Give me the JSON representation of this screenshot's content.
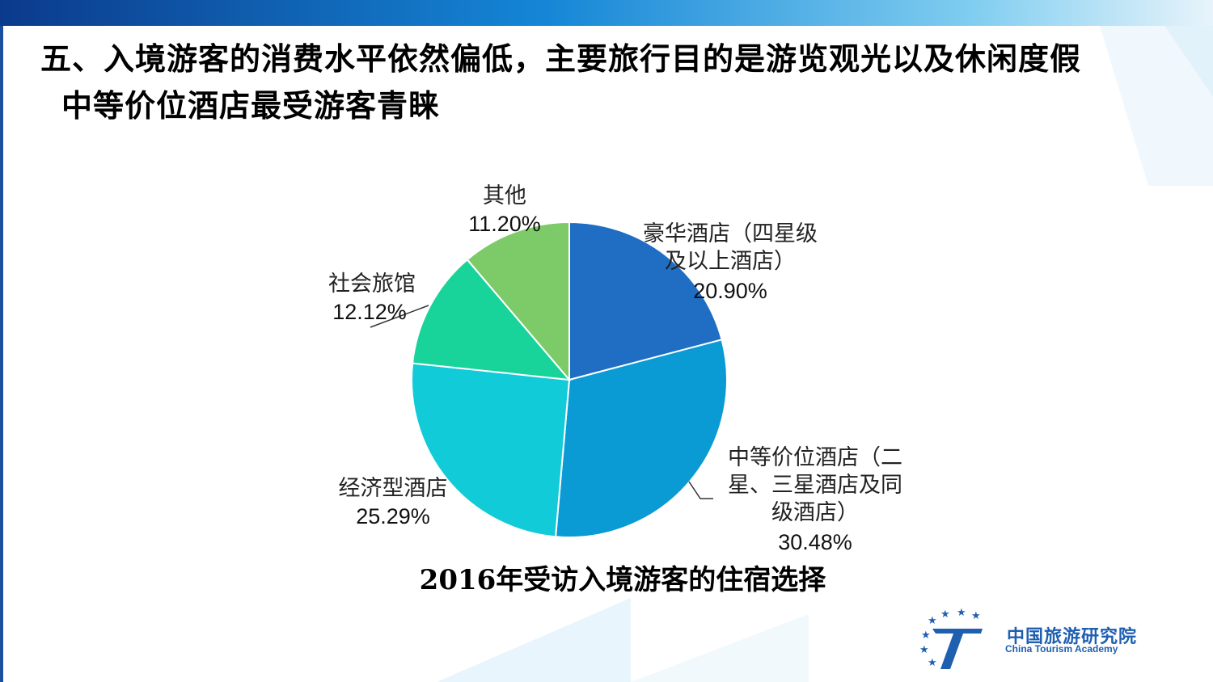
{
  "header": {
    "title_line1": "五、入境游客的消费水平依然偏低，主要旅行目的是游览观光以及休闲度假",
    "title_line2": "中等价位酒店最受游客青睐"
  },
  "chart_data": {
    "type": "pie",
    "title": "2016年受访入境游客的住宿选择",
    "slices": [
      {
        "label_lines": [
          "豪华酒店（四星级",
          "及以上酒店）"
        ],
        "pct_label": "20.90%",
        "value": 20.9,
        "color": "#1f6ec4"
      },
      {
        "label_lines": [
          "中等价位酒店（二",
          "星、三星酒店及同",
          "级酒店）"
        ],
        "pct_label": "30.48%",
        "value": 30.48,
        "color": "#0a9bd4"
      },
      {
        "label_lines": [
          "经济型酒店"
        ],
        "pct_label": "25.29%",
        "value": 25.29,
        "color": "#12cbd8"
      },
      {
        "label_lines": [
          "社会旅馆"
        ],
        "pct_label": "12.12%",
        "value": 12.12,
        "color": "#18d39a"
      },
      {
        "label_lines": [
          "其他"
        ],
        "pct_label": "11.20%",
        "value": 11.2,
        "color": "#7dcb68"
      }
    ],
    "start_angle_deg": 0,
    "direction": "clockwise"
  },
  "logo": {
    "name_cn": "中国旅游研究院",
    "name_en": "China Tourism Academy",
    "colors": {
      "primary": "#1f5fb0",
      "star": "#1f5fb0"
    }
  },
  "theme": {
    "topbar_from": "#0b3a8c",
    "topbar_to": "#e8f4fb"
  }
}
